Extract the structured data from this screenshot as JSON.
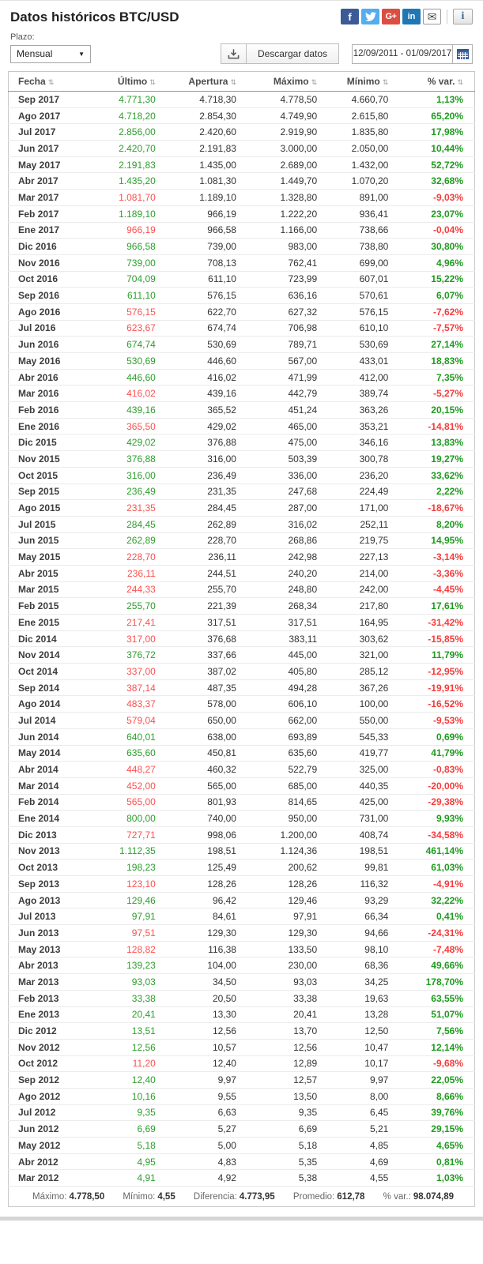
{
  "page": {
    "title": "Datos históricos BTC/USD"
  },
  "colors": {
    "positive": "#2c9e2c",
    "negative": "#fd5050",
    "accent_blue": "#4a77b5"
  },
  "icons": {
    "sort": "⇅",
    "caret": "▼",
    "envelope": "✉",
    "info": "i",
    "facebook": "f",
    "gplus": "G+",
    "linkedin": "in",
    "twitter": "bird-icon",
    "download": "download-tray-icon",
    "calendar": "calendar-grid-icon"
  },
  "controls": {
    "period_label": "Plazo:",
    "period_value": "Mensual",
    "download_label": "Descargar datos",
    "date_range": "12/09/2011 - 01/09/2017"
  },
  "table": {
    "columns": [
      "Fecha",
      "Último",
      "Apertura",
      "Máximo",
      "Mínimo",
      "% var."
    ],
    "rows": [
      {
        "date": "Sep 2017",
        "last": "4.771,30",
        "open": "4.718,30",
        "high": "4.778,50",
        "low": "4.660,70",
        "var": "1,13%"
      },
      {
        "date": "Ago 2017",
        "last": "4.718,20",
        "open": "2.854,30",
        "high": "4.749,90",
        "low": "2.615,80",
        "var": "65,20%"
      },
      {
        "date": "Jul 2017",
        "last": "2.856,00",
        "open": "2.420,60",
        "high": "2.919,90",
        "low": "1.835,80",
        "var": "17,98%"
      },
      {
        "date": "Jun 2017",
        "last": "2.420,70",
        "open": "2.191,83",
        "high": "3.000,00",
        "low": "2.050,00",
        "var": "10,44%"
      },
      {
        "date": "May 2017",
        "last": "2.191,83",
        "open": "1.435,00",
        "high": "2.689,00",
        "low": "1.432,00",
        "var": "52,72%"
      },
      {
        "date": "Abr 2017",
        "last": "1.435,20",
        "open": "1.081,30",
        "high": "1.449,70",
        "low": "1.070,20",
        "var": "32,68%"
      },
      {
        "date": "Mar 2017",
        "last": "1.081,70",
        "open": "1.189,10",
        "high": "1.328,80",
        "low": "891,00",
        "var": "-9,03%"
      },
      {
        "date": "Feb 2017",
        "last": "1.189,10",
        "open": "966,19",
        "high": "1.222,20",
        "low": "936,41",
        "var": "23,07%"
      },
      {
        "date": "Ene 2017",
        "last": "966,19",
        "open": "966,58",
        "high": "1.166,00",
        "low": "738,66",
        "var": "-0,04%"
      },
      {
        "date": "Dic 2016",
        "last": "966,58",
        "open": "739,00",
        "high": "983,00",
        "low": "738,80",
        "var": "30,80%"
      },
      {
        "date": "Nov 2016",
        "last": "739,00",
        "open": "708,13",
        "high": "762,41",
        "low": "699,00",
        "var": "4,96%"
      },
      {
        "date": "Oct 2016",
        "last": "704,09",
        "open": "611,10",
        "high": "723,99",
        "low": "607,01",
        "var": "15,22%"
      },
      {
        "date": "Sep 2016",
        "last": "611,10",
        "open": "576,15",
        "high": "636,16",
        "low": "570,61",
        "var": "6,07%"
      },
      {
        "date": "Ago 2016",
        "last": "576,15",
        "open": "622,70",
        "high": "627,32",
        "low": "576,15",
        "var": "-7,62%"
      },
      {
        "date": "Jul 2016",
        "last": "623,67",
        "open": "674,74",
        "high": "706,98",
        "low": "610,10",
        "var": "-7,57%"
      },
      {
        "date": "Jun 2016",
        "last": "674,74",
        "open": "530,69",
        "high": "789,71",
        "low": "530,69",
        "var": "27,14%"
      },
      {
        "date": "May 2016",
        "last": "530,69",
        "open": "446,60",
        "high": "567,00",
        "low": "433,01",
        "var": "18,83%"
      },
      {
        "date": "Abr 2016",
        "last": "446,60",
        "open": "416,02",
        "high": "471,99",
        "low": "412,00",
        "var": "7,35%"
      },
      {
        "date": "Mar 2016",
        "last": "416,02",
        "open": "439,16",
        "high": "442,79",
        "low": "389,74",
        "var": "-5,27%"
      },
      {
        "date": "Feb 2016",
        "last": "439,16",
        "open": "365,52",
        "high": "451,24",
        "low": "363,26",
        "var": "20,15%"
      },
      {
        "date": "Ene 2016",
        "last": "365,50",
        "open": "429,02",
        "high": "465,00",
        "low": "353,21",
        "var": "-14,81%"
      },
      {
        "date": "Dic 2015",
        "last": "429,02",
        "open": "376,88",
        "high": "475,00",
        "low": "346,16",
        "var": "13,83%"
      },
      {
        "date": "Nov 2015",
        "last": "376,88",
        "open": "316,00",
        "high": "503,39",
        "low": "300,78",
        "var": "19,27%"
      },
      {
        "date": "Oct 2015",
        "last": "316,00",
        "open": "236,49",
        "high": "336,00",
        "low": "236,20",
        "var": "33,62%"
      },
      {
        "date": "Sep 2015",
        "last": "236,49",
        "open": "231,35",
        "high": "247,68",
        "low": "224,49",
        "var": "2,22%"
      },
      {
        "date": "Ago 2015",
        "last": "231,35",
        "open": "284,45",
        "high": "287,00",
        "low": "171,00",
        "var": "-18,67%"
      },
      {
        "date": "Jul 2015",
        "last": "284,45",
        "open": "262,89",
        "high": "316,02",
        "low": "252,11",
        "var": "8,20%"
      },
      {
        "date": "Jun 2015",
        "last": "262,89",
        "open": "228,70",
        "high": "268,86",
        "low": "219,75",
        "var": "14,95%"
      },
      {
        "date": "May 2015",
        "last": "228,70",
        "open": "236,11",
        "high": "242,98",
        "low": "227,13",
        "var": "-3,14%"
      },
      {
        "date": "Abr 2015",
        "last": "236,11",
        "open": "244,51",
        "high": "240,20",
        "low": "214,00",
        "var": "-3,36%"
      },
      {
        "date": "Mar 2015",
        "last": "244,33",
        "open": "255,70",
        "high": "248,80",
        "low": "242,00",
        "var": "-4,45%"
      },
      {
        "date": "Feb 2015",
        "last": "255,70",
        "open": "221,39",
        "high": "268,34",
        "low": "217,80",
        "var": "17,61%"
      },
      {
        "date": "Ene 2015",
        "last": "217,41",
        "open": "317,51",
        "high": "317,51",
        "low": "164,95",
        "var": "-31,42%"
      },
      {
        "date": "Dic 2014",
        "last": "317,00",
        "open": "376,68",
        "high": "383,11",
        "low": "303,62",
        "var": "-15,85%"
      },
      {
        "date": "Nov 2014",
        "last": "376,72",
        "open": "337,66",
        "high": "445,00",
        "low": "321,00",
        "var": "11,79%"
      },
      {
        "date": "Oct 2014",
        "last": "337,00",
        "open": "387,02",
        "high": "405,80",
        "low": "285,12",
        "var": "-12,95%"
      },
      {
        "date": "Sep 2014",
        "last": "387,14",
        "open": "487,35",
        "high": "494,28",
        "low": "367,26",
        "var": "-19,91%"
      },
      {
        "date": "Ago 2014",
        "last": "483,37",
        "open": "578,00",
        "high": "606,10",
        "low": "100,00",
        "var": "-16,52%"
      },
      {
        "date": "Jul 2014",
        "last": "579,04",
        "open": "650,00",
        "high": "662,00",
        "low": "550,00",
        "var": "-9,53%"
      },
      {
        "date": "Jun 2014",
        "last": "640,01",
        "open": "638,00",
        "high": "693,89",
        "low": "545,33",
        "var": "0,69%"
      },
      {
        "date": "May 2014",
        "last": "635,60",
        "open": "450,81",
        "high": "635,60",
        "low": "419,77",
        "var": "41,79%"
      },
      {
        "date": "Abr 2014",
        "last": "448,27",
        "open": "460,32",
        "high": "522,79",
        "low": "325,00",
        "var": "-0,83%"
      },
      {
        "date": "Mar 2014",
        "last": "452,00",
        "open": "565,00",
        "high": "685,00",
        "low": "440,35",
        "var": "-20,00%"
      },
      {
        "date": "Feb 2014",
        "last": "565,00",
        "open": "801,93",
        "high": "814,65",
        "low": "425,00",
        "var": "-29,38%"
      },
      {
        "date": "Ene 2014",
        "last": "800,00",
        "open": "740,00",
        "high": "950,00",
        "low": "731,00",
        "var": "9,93%"
      },
      {
        "date": "Dic 2013",
        "last": "727,71",
        "open": "998,06",
        "high": "1.200,00",
        "low": "408,74",
        "var": "-34,58%"
      },
      {
        "date": "Nov 2013",
        "last": "1.112,35",
        "open": "198,51",
        "high": "1.124,36",
        "low": "198,51",
        "var": "461,14%"
      },
      {
        "date": "Oct 2013",
        "last": "198,23",
        "open": "125,49",
        "high": "200,62",
        "low": "99,81",
        "var": "61,03%"
      },
      {
        "date": "Sep 2013",
        "last": "123,10",
        "open": "128,26",
        "high": "128,26",
        "low": "116,32",
        "var": "-4,91%"
      },
      {
        "date": "Ago 2013",
        "last": "129,46",
        "open": "96,42",
        "high": "129,46",
        "low": "93,29",
        "var": "32,22%"
      },
      {
        "date": "Jul 2013",
        "last": "97,91",
        "open": "84,61",
        "high": "97,91",
        "low": "66,34",
        "var": "0,41%"
      },
      {
        "date": "Jun 2013",
        "last": "97,51",
        "open": "129,30",
        "high": "129,30",
        "low": "94,66",
        "var": "-24,31%"
      },
      {
        "date": "May 2013",
        "last": "128,82",
        "open": "116,38",
        "high": "133,50",
        "low": "98,10",
        "var": "-7,48%"
      },
      {
        "date": "Abr 2013",
        "last": "139,23",
        "open": "104,00",
        "high": "230,00",
        "low": "68,36",
        "var": "49,66%"
      },
      {
        "date": "Mar 2013",
        "last": "93,03",
        "open": "34,50",
        "high": "93,03",
        "low": "34,25",
        "var": "178,70%"
      },
      {
        "date": "Feb 2013",
        "last": "33,38",
        "open": "20,50",
        "high": "33,38",
        "low": "19,63",
        "var": "63,55%"
      },
      {
        "date": "Ene 2013",
        "last": "20,41",
        "open": "13,30",
        "high": "20,41",
        "low": "13,28",
        "var": "51,07%"
      },
      {
        "date": "Dic 2012",
        "last": "13,51",
        "open": "12,56",
        "high": "13,70",
        "low": "12,50",
        "var": "7,56%"
      },
      {
        "date": "Nov 2012",
        "last": "12,56",
        "open": "10,57",
        "high": "12,56",
        "low": "10,47",
        "var": "12,14%"
      },
      {
        "date": "Oct 2012",
        "last": "11,20",
        "open": "12,40",
        "high": "12,89",
        "low": "10,17",
        "var": "-9,68%"
      },
      {
        "date": "Sep 2012",
        "last": "12,40",
        "open": "9,97",
        "high": "12,57",
        "low": "9,97",
        "var": "22,05%"
      },
      {
        "date": "Ago 2012",
        "last": "10,16",
        "open": "9,55",
        "high": "13,50",
        "low": "8,00",
        "var": "8,66%"
      },
      {
        "date": "Jul 2012",
        "last": "9,35",
        "open": "6,63",
        "high": "9,35",
        "low": "6,45",
        "var": "39,76%"
      },
      {
        "date": "Jun 2012",
        "last": "6,69",
        "open": "5,27",
        "high": "6,69",
        "low": "5,21",
        "var": "29,15%"
      },
      {
        "date": "May 2012",
        "last": "5,18",
        "open": "5,00",
        "high": "5,18",
        "low": "4,85",
        "var": "4,65%"
      },
      {
        "date": "Abr 2012",
        "last": "4,95",
        "open": "4,83",
        "high": "5,35",
        "low": "4,69",
        "var": "0,81%"
      },
      {
        "date": "Mar 2012",
        "last": "4,91",
        "open": "4,92",
        "high": "5,38",
        "low": "4,55",
        "var": "1,03%"
      }
    ],
    "summary": [
      {
        "label": "Máximo:",
        "value": "4.778,50"
      },
      {
        "label": "Mínimo:",
        "value": "4,55"
      },
      {
        "label": "Diferencia:",
        "value": "4.773,95"
      },
      {
        "label": "Promedio:",
        "value": "612,78"
      },
      {
        "label": "% var.:",
        "value": "98.074,89"
      }
    ]
  }
}
